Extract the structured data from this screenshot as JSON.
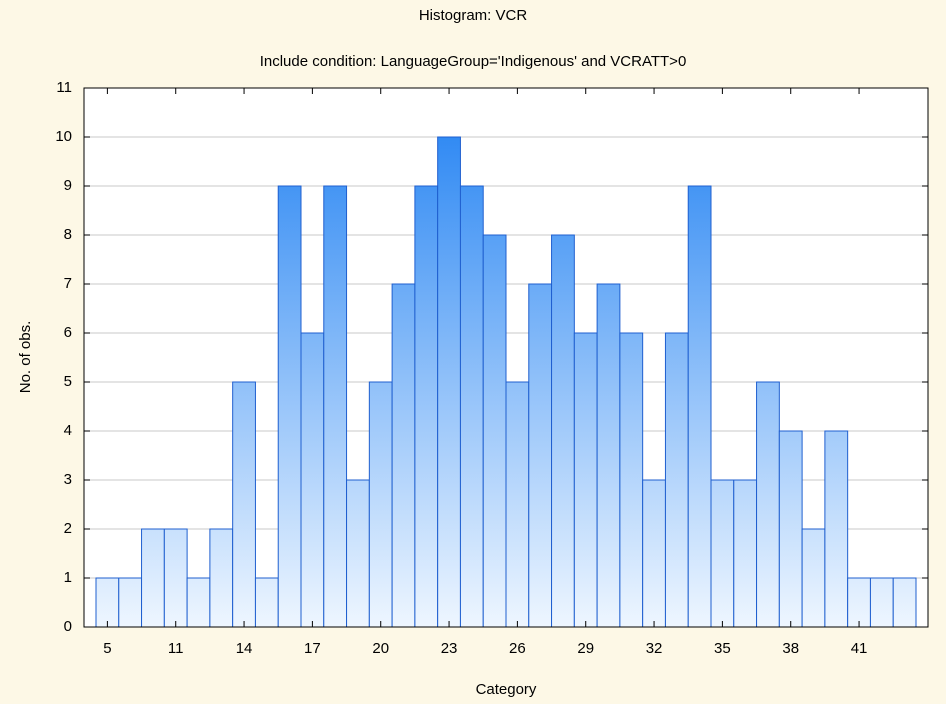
{
  "chart_data": {
    "type": "bar",
    "title": "Histogram: VCR",
    "subtitle": "Include condition: LanguageGroup='Indigenous' and VCRATT>0",
    "x_label": "Category",
    "y_label": "No. of obs.",
    "categories": [
      5,
      null,
      null,
      11,
      null,
      null,
      14,
      null,
      null,
      17,
      null,
      null,
      20,
      null,
      null,
      23,
      null,
      null,
      26,
      null,
      null,
      29,
      null,
      null,
      32,
      null,
      null,
      35,
      null,
      null,
      38,
      null,
      null,
      41,
      null,
      null
    ],
    "values": [
      1,
      1,
      2,
      2,
      1,
      2,
      5,
      1,
      9,
      6,
      9,
      3,
      5,
      7,
      9,
      10,
      9,
      8,
      5,
      7,
      8,
      6,
      7,
      6,
      3,
      6,
      9,
      3,
      3,
      5,
      4,
      2,
      4,
      1,
      1,
      1
    ],
    "color": "#1f80f2",
    "ylim": [
      0,
      11
    ],
    "yticks": [
      0,
      1,
      2,
      3,
      4,
      5,
      6,
      7,
      8,
      9,
      10,
      11
    ],
    "grid": true
  }
}
